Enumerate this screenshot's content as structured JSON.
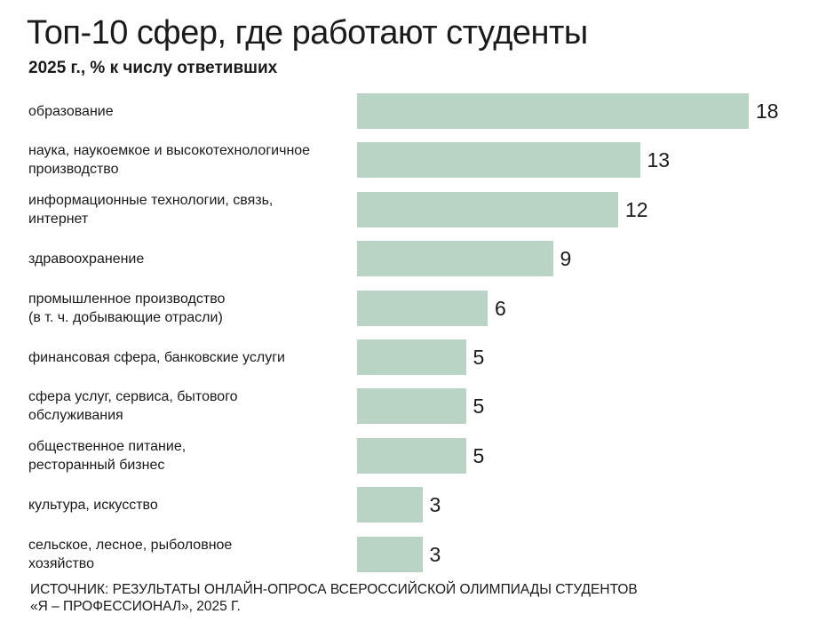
{
  "chart_data": {
    "type": "bar",
    "orientation": "horizontal",
    "title": "Топ-10 сфер, где работают студенты",
    "subtitle": "2025 г., % к числу ответивших",
    "categories": [
      "образование",
      "наука, наукоемкое и высокотехнологичное\nпроизводство",
      "информационные технологии, связь,\nинтернет",
      "здравоохранение",
      "промышленное производство\n(в т. ч. добывающие отрасли)",
      "финансовая сфера, банковские услуги",
      "сфера услуг, сервиса, бытового\nобслуживания",
      "общественное питание,\nресторанный бизнес",
      "культура, искусство",
      "сельское, лесное, рыболовное\nхозяйство"
    ],
    "values": [
      18,
      13,
      12,
      9,
      6,
      5,
      5,
      5,
      3,
      3
    ],
    "color": "#b9d3c4",
    "source": "ИСТОЧНИК: РЕЗУЛЬТАТЫ ОНЛАЙН-ОПРОСА ВСЕРОССИЙСКОЙ ОЛИМПИАДЫ СТУДЕНТОВ\n«Я – ПРОФЕССИОНАЛ», 2025 Г."
  }
}
